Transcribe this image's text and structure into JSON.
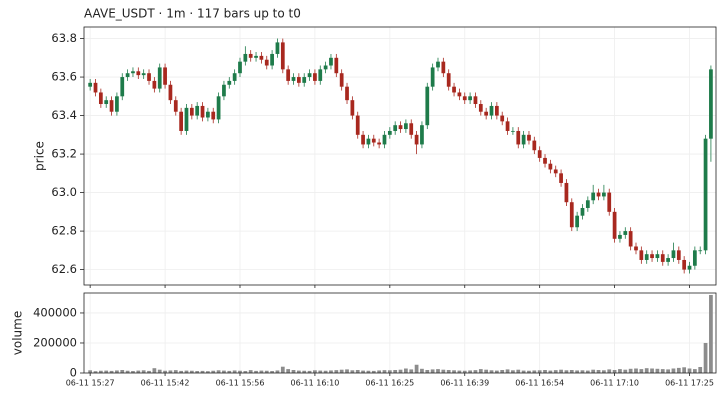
{
  "chart_data": [
    {
      "type": "candlestick",
      "title": "AAVE_USDT  ·  1m  ·  117 bars up to t0",
      "ylabel": "price",
      "up_color": "#1e7b4a",
      "down_color": "#a8281f",
      "grid": true,
      "ylim": [
        62.52,
        63.86
      ],
      "yticks": [
        62.6,
        62.8,
        {
          "value": 63,
          "label": "63.0"
        },
        63.2,
        63.4,
        63.6,
        63.8
      ],
      "open": [
        63.55,
        63.57,
        63.52,
        63.46,
        63.48,
        63.42,
        63.5,
        63.6,
        63.62,
        63.63,
        63.61,
        63.62,
        63.58,
        63.54,
        63.65,
        63.56,
        63.48,
        63.42,
        63.32,
        63.44,
        63.4,
        63.45,
        63.39,
        63.42,
        63.38,
        63.5,
        63.56,
        63.58,
        63.62,
        63.68,
        63.72,
        63.7,
        63.71,
        63.69,
        63.66,
        63.72,
        63.78,
        63.64,
        63.58,
        63.6,
        63.57,
        63.6,
        63.62,
        63.58,
        63.64,
        63.66,
        63.7,
        63.62,
        63.55,
        63.48,
        63.4,
        63.3,
        63.25,
        63.28,
        63.26,
        63.25,
        63.3,
        63.32,
        63.35,
        63.33,
        63.36,
        63.3,
        63.25,
        63.35,
        63.55,
        63.65,
        63.68,
        63.62,
        63.55,
        63.52,
        63.5,
        63.48,
        63.5,
        63.46,
        63.42,
        63.4,
        63.45,
        63.4,
        63.37,
        63.32,
        63.32,
        63.25,
        63.3,
        63.27,
        63.22,
        63.18,
        63.15,
        63.12,
        63.1,
        63.05,
        62.95,
        62.82,
        62.88,
        62.92,
        62.96,
        63.0,
        62.98,
        63.0,
        62.9,
        62.76,
        62.78,
        62.8,
        62.72,
        62.7,
        62.65,
        62.68,
        62.66,
        62.68,
        62.64,
        62.66,
        62.7,
        62.65,
        62.6,
        62.62,
        62.7,
        62.7,
        63.28
      ],
      "high": [
        63.59,
        63.59,
        63.54,
        63.5,
        63.5,
        63.52,
        63.62,
        63.64,
        63.65,
        63.65,
        63.64,
        63.64,
        63.6,
        63.67,
        63.67,
        63.58,
        63.5,
        63.44,
        63.46,
        63.46,
        63.47,
        63.47,
        63.44,
        63.44,
        63.52,
        63.58,
        63.6,
        63.64,
        63.7,
        63.76,
        63.74,
        63.73,
        63.73,
        63.71,
        63.74,
        63.8,
        63.8,
        63.66,
        63.62,
        63.62,
        63.62,
        63.64,
        63.64,
        63.66,
        63.68,
        63.72,
        63.72,
        63.64,
        63.57,
        63.5,
        63.42,
        63.32,
        63.3,
        63.3,
        63.28,
        63.32,
        63.34,
        63.37,
        63.37,
        63.38,
        63.38,
        63.32,
        63.37,
        63.57,
        63.67,
        63.7,
        63.7,
        63.64,
        63.57,
        63.54,
        63.52,
        63.52,
        63.52,
        63.48,
        63.44,
        63.47,
        63.47,
        63.42,
        63.39,
        63.34,
        63.34,
        63.32,
        63.32,
        63.29,
        63.24,
        63.2,
        63.17,
        63.14,
        63.12,
        63.07,
        62.97,
        62.9,
        62.94,
        62.98,
        63.04,
        63.02,
        63.04,
        63.02,
        62.92,
        62.8,
        62.82,
        62.82,
        62.74,
        62.72,
        62.7,
        62.7,
        62.7,
        62.7,
        62.68,
        62.74,
        62.72,
        62.67,
        62.64,
        62.72,
        62.72,
        63.3,
        63.66
      ],
      "low": [
        63.53,
        63.5,
        63.44,
        63.44,
        63.4,
        63.4,
        63.48,
        63.58,
        63.6,
        63.59,
        63.59,
        63.56,
        63.52,
        63.52,
        63.54,
        63.46,
        63.4,
        63.3,
        63.3,
        63.38,
        63.38,
        63.37,
        63.37,
        63.36,
        63.36,
        63.48,
        63.54,
        63.56,
        63.6,
        63.66,
        63.68,
        63.68,
        63.67,
        63.64,
        63.64,
        63.7,
        63.62,
        63.56,
        63.56,
        63.55,
        63.55,
        63.58,
        63.56,
        63.56,
        63.62,
        63.64,
        63.6,
        63.53,
        63.46,
        63.38,
        63.28,
        63.23,
        63.23,
        63.24,
        63.23,
        63.23,
        63.28,
        63.3,
        63.31,
        63.31,
        63.28,
        63.2,
        63.23,
        63.33,
        63.53,
        63.63,
        63.6,
        63.53,
        63.5,
        63.48,
        63.46,
        63.46,
        63.44,
        63.4,
        63.38,
        63.38,
        63.38,
        63.35,
        63.3,
        63.3,
        63.23,
        63.23,
        63.25,
        63.2,
        63.16,
        63.13,
        63.1,
        63.08,
        63.03,
        62.93,
        62.8,
        62.8,
        62.86,
        62.9,
        62.94,
        62.96,
        62.96,
        62.88,
        62.74,
        62.74,
        62.76,
        62.7,
        62.68,
        62.63,
        62.63,
        62.64,
        62.64,
        62.62,
        62.62,
        62.64,
        62.63,
        62.58,
        62.58,
        62.6,
        62.68,
        62.68,
        63.16
      ],
      "close": [
        63.57,
        63.52,
        63.46,
        63.48,
        63.42,
        63.5,
        63.6,
        63.62,
        63.63,
        63.61,
        63.62,
        63.58,
        63.54,
        63.65,
        63.56,
        63.48,
        63.42,
        63.32,
        63.44,
        63.4,
        63.45,
        63.39,
        63.42,
        63.38,
        63.5,
        63.56,
        63.58,
        63.62,
        63.68,
        63.72,
        63.7,
        63.71,
        63.69,
        63.66,
        63.72,
        63.78,
        63.64,
        63.58,
        63.6,
        63.57,
        63.6,
        63.62,
        63.58,
        63.64,
        63.66,
        63.7,
        63.62,
        63.55,
        63.48,
        63.4,
        63.3,
        63.25,
        63.28,
        63.26,
        63.25,
        63.3,
        63.32,
        63.35,
        63.33,
        63.36,
        63.3,
        63.25,
        63.35,
        63.55,
        63.65,
        63.68,
        63.62,
        63.55,
        63.52,
        63.5,
        63.48,
        63.5,
        63.46,
        63.42,
        63.4,
        63.45,
        63.4,
        63.37,
        63.32,
        63.32,
        63.25,
        63.3,
        63.27,
        63.22,
        63.18,
        63.15,
        63.12,
        63.1,
        63.05,
        62.95,
        62.82,
        62.88,
        62.92,
        62.96,
        63.0,
        62.98,
        63.0,
        62.9,
        62.76,
        62.78,
        62.8,
        62.72,
        62.7,
        62.65,
        62.68,
        62.66,
        62.68,
        62.64,
        62.66,
        62.7,
        62.65,
        62.6,
        62.62,
        62.7,
        62.7,
        63.28,
        63.64
      ]
    },
    {
      "type": "bar",
      "ylabel": "volume",
      "color": "#8c8c8c",
      "grid": true,
      "ylim": [
        0,
        533000
      ],
      "yticks": [
        0,
        200000,
        400000
      ],
      "xticks": [
        {
          "value": 0,
          "label": "06-11 15:27"
        },
        {
          "value": 14,
          "label": "06-11 15:42"
        },
        {
          "value": 28,
          "label": "06-11 15:56"
        },
        {
          "value": 42,
          "label": "06-11 16:10"
        },
        {
          "value": 56,
          "label": "06-11 16:25"
        },
        {
          "value": 70,
          "label": "06-11 16:39"
        },
        {
          "value": 84,
          "label": "06-11 16:54"
        },
        {
          "value": 98,
          "label": "06-11 17:10"
        },
        {
          "value": 112,
          "label": "06-11 17:25"
        }
      ],
      "values": [
        18000,
        12000,
        15000,
        16000,
        14000,
        17000,
        20000,
        15000,
        13000,
        16000,
        18000,
        14000,
        32000,
        22000,
        15000,
        17000,
        19000,
        14000,
        16000,
        15000,
        13000,
        14000,
        12000,
        15000,
        18000,
        16000,
        14000,
        17000,
        15000,
        13000,
        19000,
        14000,
        16000,
        15000,
        13000,
        17000,
        42000,
        26000,
        20000,
        16000,
        15000,
        14000,
        18000,
        16000,
        15000,
        17000,
        19000,
        22000,
        24000,
        18000,
        20000,
        16000,
        15000,
        14000,
        17000,
        19000,
        18000,
        20000,
        22000,
        30000,
        24000,
        55000,
        28000,
        20000,
        24000,
        26000,
        22000,
        20000,
        18000,
        16000,
        15000,
        17000,
        19000,
        26000,
        22000,
        18000,
        16000,
        20000,
        24000,
        18000,
        22000,
        16000,
        15000,
        17000,
        18000,
        20000,
        16000,
        19000,
        22000,
        18000,
        20000,
        17000,
        18000,
        16000,
        22000,
        20000,
        18000,
        24000,
        20000,
        26000,
        22000,
        28000,
        30000,
        26000,
        32000,
        30000,
        28000,
        26000,
        24000,
        30000,
        34000,
        38000,
        30000,
        26000,
        40000,
        200000,
        520000
      ]
    }
  ]
}
